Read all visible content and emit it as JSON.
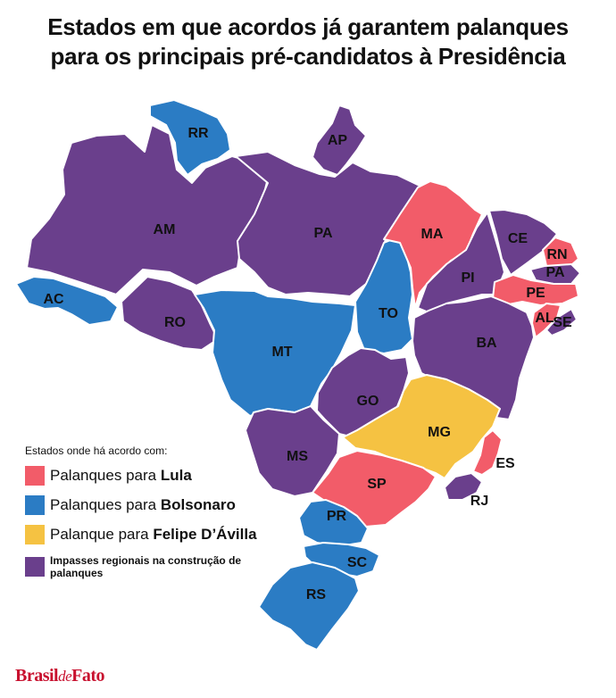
{
  "title": {
    "line1": "Estados em que acordos já garantem palanques",
    "line2": "para os principais pré-candidatos à Presidência"
  },
  "colors": {
    "lula": "#f25c69",
    "bolsonaro": "#2b7cc4",
    "felipe": "#f5c242",
    "impasse": "#6a3f8c"
  },
  "legend": {
    "heading": "Estados onde há acordo com:",
    "items": [
      {
        "key": "lula",
        "prefix": "Palanques para ",
        "name": "Lula"
      },
      {
        "key": "bolsonaro",
        "prefix": "Palanques para ",
        "name": "Bolsonaro"
      },
      {
        "key": "felipe",
        "prefix": "Palanque para ",
        "name": "Felipe D’Ávilla"
      },
      {
        "key": "impasse",
        "text": "Impasses regionais na construção de palanques"
      }
    ]
  },
  "states": [
    {
      "abbr": "RR",
      "category": "bolsonaro"
    },
    {
      "abbr": "AP",
      "category": "impasse"
    },
    {
      "abbr": "AM",
      "category": "impasse"
    },
    {
      "abbr": "PA",
      "category": "impasse"
    },
    {
      "abbr": "AC",
      "category": "bolsonaro"
    },
    {
      "abbr": "RO",
      "category": "impasse"
    },
    {
      "abbr": "MT",
      "category": "bolsonaro"
    },
    {
      "abbr": "TO",
      "category": "bolsonaro"
    },
    {
      "abbr": "MA",
      "category": "lula"
    },
    {
      "abbr": "PI",
      "category": "impasse"
    },
    {
      "abbr": "CE",
      "category": "impasse"
    },
    {
      "abbr": "RN",
      "category": "lula"
    },
    {
      "abbr": "PA",
      "category": "impasse"
    },
    {
      "abbr": "PE",
      "category": "lula"
    },
    {
      "abbr": "AL",
      "category": "lula"
    },
    {
      "abbr": "SE",
      "category": "impasse"
    },
    {
      "abbr": "BA",
      "category": "impasse"
    },
    {
      "abbr": "GO",
      "category": "impasse"
    },
    {
      "abbr": "MG",
      "category": "felipe"
    },
    {
      "abbr": "ES",
      "category": "lula"
    },
    {
      "abbr": "RJ",
      "category": "impasse"
    },
    {
      "abbr": "SP",
      "category": "lula"
    },
    {
      "abbr": "MS",
      "category": "impasse"
    },
    {
      "abbr": "PR",
      "category": "bolsonaro"
    },
    {
      "abbr": "SC",
      "category": "bolsonaro"
    },
    {
      "abbr": "RS",
      "category": "bolsonaro"
    }
  ],
  "brand": {
    "part1": "Brasil",
    "part2": "de",
    "part3": "Fato"
  }
}
